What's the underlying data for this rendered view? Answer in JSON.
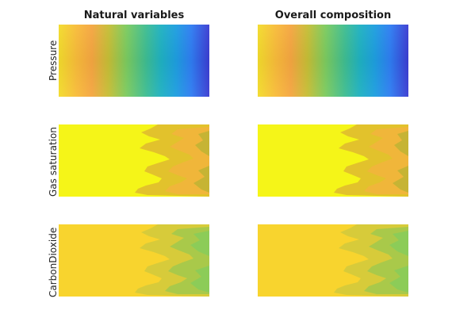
{
  "figure": {
    "column_titles": [
      "Natural variables",
      "Overall composition"
    ],
    "row_labels": [
      "Pressure",
      "Gas saturation",
      "CarbonDioxide"
    ]
  },
  "chart_data": [
    {
      "type": "heatmap",
      "title": "Natural variables",
      "ylabel": "Pressure",
      "colormap": "parula",
      "pattern": "horizontal gradient, high (yellow) at left to low (blue) at right"
    },
    {
      "type": "heatmap",
      "title": "Overall composition",
      "ylabel": "",
      "colormap": "parula",
      "pattern": "horizontal gradient, high (yellow) at left to low (blue) at right"
    },
    {
      "type": "heatmap",
      "title": "",
      "ylabel": "Gas saturation",
      "colormap": "parula",
      "pattern": "background yellow; jagged gas front entering from right edge in orange/olive"
    },
    {
      "type": "heatmap",
      "title": "",
      "ylabel": "",
      "colormap": "parula",
      "pattern": "background yellow; jagged gas front entering from right edge in orange/olive"
    },
    {
      "type": "heatmap",
      "title": "",
      "ylabel": "CarbonDioxide",
      "colormap": "parula",
      "pattern": "background gold; jagged CO2 front entering from right edge in green"
    },
    {
      "type": "heatmap",
      "title": "",
      "ylabel": "",
      "colormap": "parula",
      "pattern": "background gold; jagged CO2 front entering from right edge in green"
    }
  ]
}
